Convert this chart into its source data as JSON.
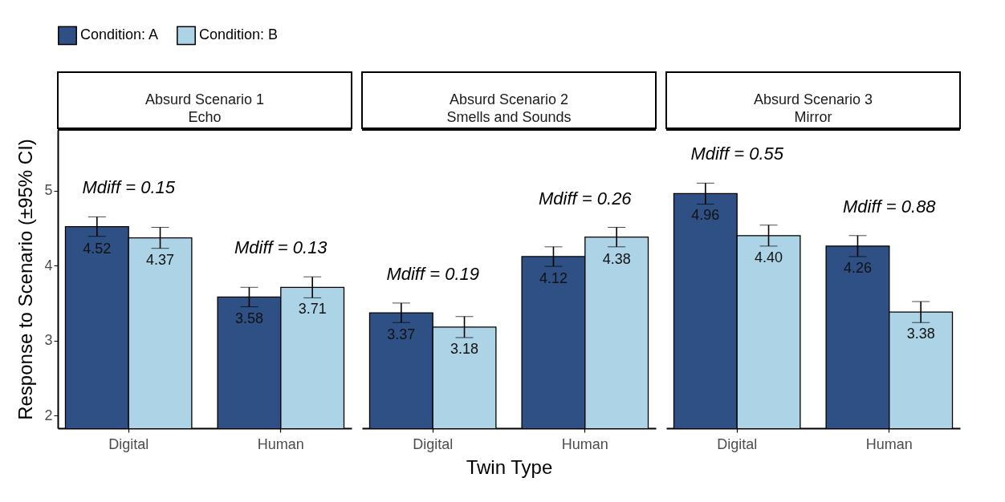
{
  "chart_data": [
    {
      "type": "bar",
      "title": "Absurd Scenario 1\nEcho",
      "ylabel": "Response to Scenario (±95% CI)",
      "categories": [
        "Digital",
        "Human"
      ],
      "ylim": [
        1.83,
        5.81
      ],
      "yticks": [
        2,
        3,
        4,
        5
      ],
      "legend": "top",
      "grid": false,
      "series": [
        {
          "name": "Condition: A",
          "color": "#2e5084",
          "values": [
            4.52,
            3.58
          ],
          "errors": [
            0.13,
            0.13
          ],
          "value_labels": [
            "4.52",
            "3.58"
          ]
        },
        {
          "name": "Condition: B",
          "color": "#acd3e6",
          "values": [
            4.37,
            3.71
          ],
          "errors": [
            0.14,
            0.14
          ],
          "value_labels": [
            "4.37",
            "3.71"
          ]
        }
      ],
      "annotations": [
        "Mdiff = 0.15",
        "Mdiff = 0.13"
      ]
    },
    {
      "type": "bar",
      "title": "Absurd Scenario 2\nSmells and Sounds",
      "xlabel": "Twin Type",
      "categories": [
        "Digital",
        "Human"
      ],
      "ylim": [
        1.83,
        5.81
      ],
      "yticks": [
        2,
        3,
        4,
        5
      ],
      "tick_labels": "x",
      "grid": false,
      "series": [
        {
          "color": "#2e5084",
          "values": [
            3.37,
            4.12
          ],
          "errors": [
            0.13,
            0.13
          ],
          "value_labels": [
            "3.37",
            "4.12"
          ]
        },
        {
          "color": "#acd3e6",
          "values": [
            3.18,
            4.38
          ],
          "errors": [
            0.14,
            0.13
          ],
          "value_labels": [
            "3.18",
            "4.38"
          ]
        }
      ],
      "annotations": [
        "Mdiff = 0.19",
        "Mdiff = 0.26"
      ]
    },
    {
      "type": "bar",
      "title": "Absurd Scenario 3\nMirror",
      "categories": [
        "Digital",
        "Human"
      ],
      "ylim": [
        1.83,
        5.81
      ],
      "yticks": [
        2,
        3,
        4,
        5
      ],
      "tick_labels": "x",
      "grid": false,
      "series": [
        {
          "color": "#2e5084",
          "values": [
            4.96,
            4.26
          ],
          "errors": [
            0.14,
            0.14
          ],
          "value_labels": [
            "4.96",
            "4.26"
          ]
        },
        {
          "color": "#acd3e6",
          "values": [
            4.4,
            3.38
          ],
          "errors": [
            0.14,
            0.14
          ],
          "value_labels": [
            "4.40",
            "3.38"
          ]
        }
      ],
      "annotations": [
        "Mdiff = 0.55",
        "Mdiff = 0.88"
      ]
    }
  ]
}
